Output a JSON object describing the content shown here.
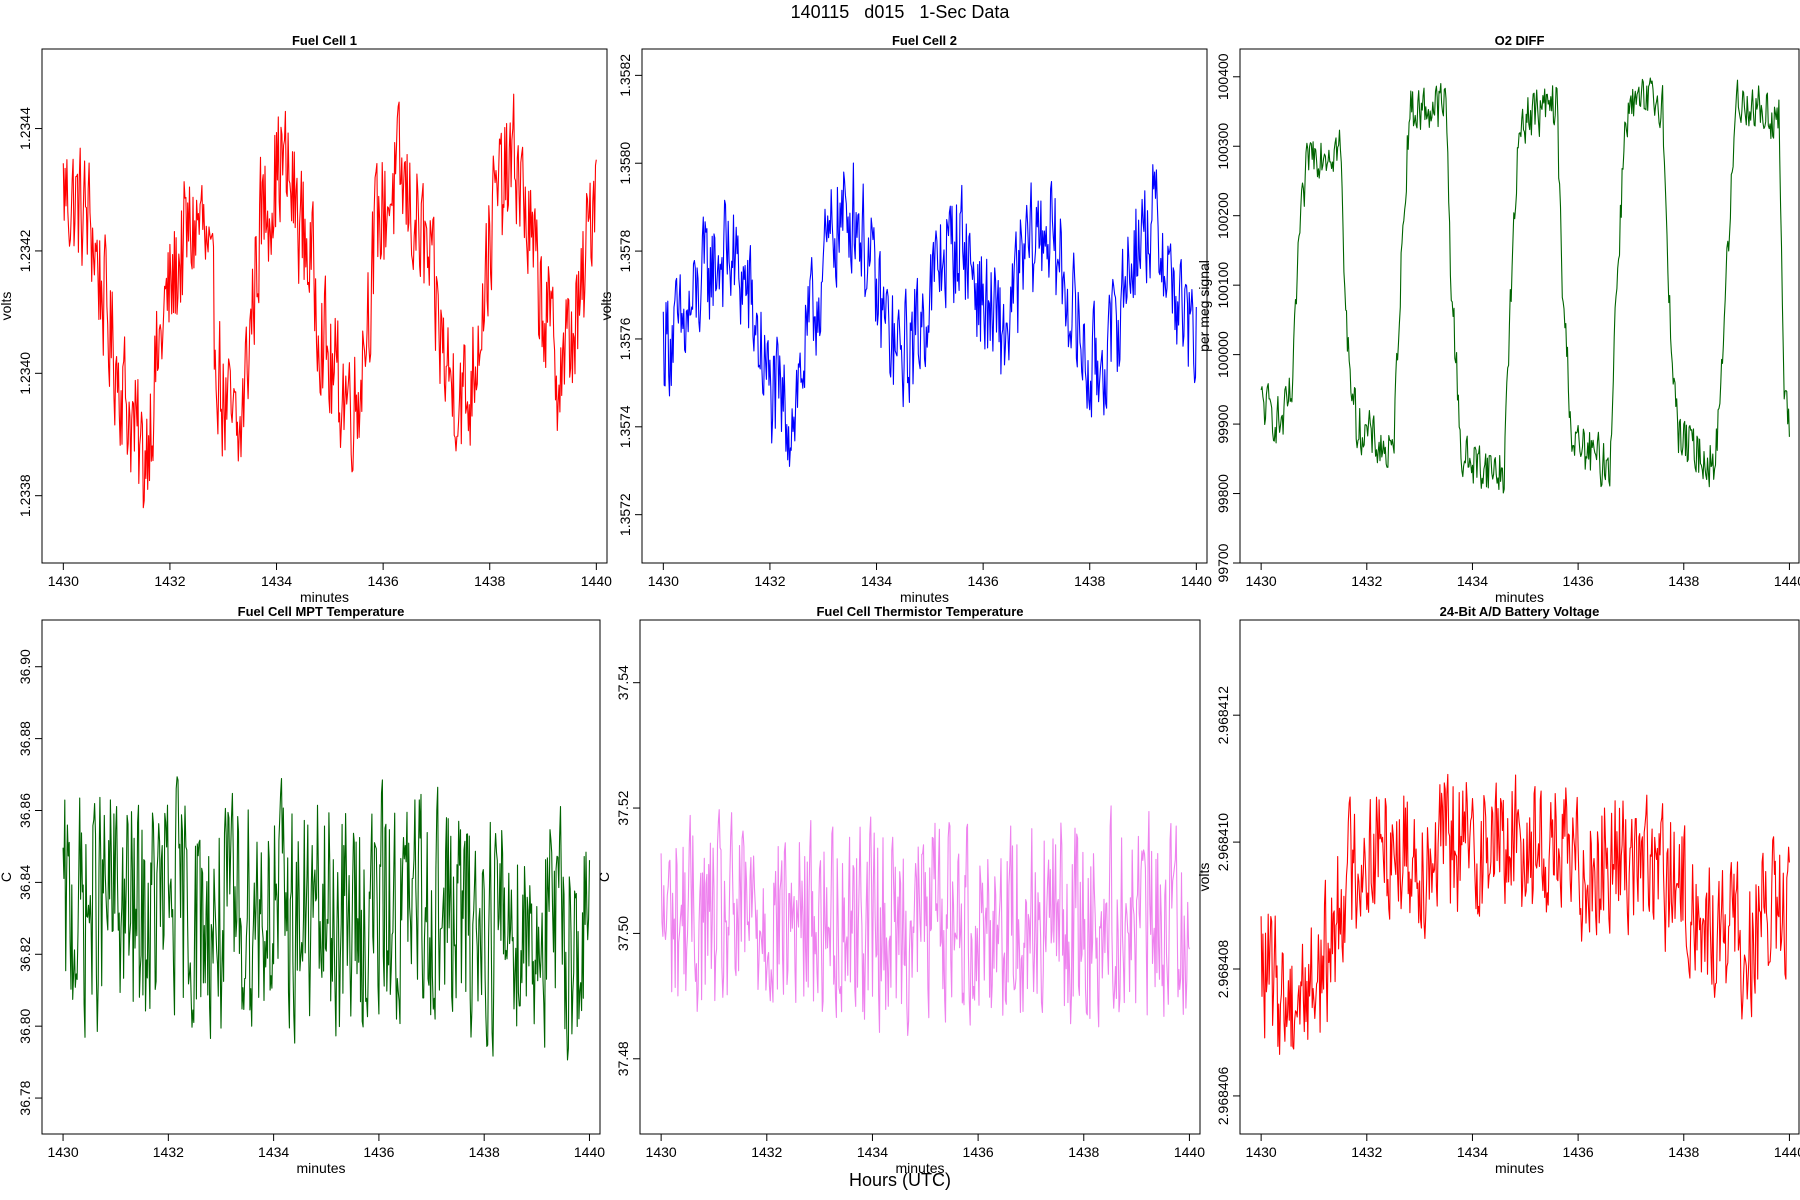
{
  "page": {
    "title": "140115   d015   1-Sec Data",
    "xlabel": "Hours (UTC)"
  },
  "chart_data": [
    {
      "type": "line",
      "title": "Fuel Cell 1",
      "xlabel": "minutes",
      "ylabel": "volts",
      "color": "#ff0000",
      "xlim": [
        1429.6,
        1440.2
      ],
      "ylim": [
        1.23369,
        1.23453
      ],
      "xticks": [
        "1430",
        "1432",
        "1434",
        "1436",
        "1438",
        "1440"
      ],
      "yticks": [
        "1.2338",
        "1.2340",
        "1.2342",
        "1.2344"
      ],
      "series": [
        {
          "x": [
            1430.0,
            1430.5,
            1430.9,
            1431.2,
            1431.5,
            1431.9,
            1432.3,
            1432.6,
            1433.0,
            1433.3,
            1433.7,
            1434.1,
            1434.6,
            1435.0,
            1435.5,
            1435.9,
            1436.3,
            1436.8,
            1437.2,
            1437.6,
            1438.1,
            1438.5,
            1438.9,
            1439.3,
            1439.7,
            1440.0
          ],
          "y": [
            1.2343,
            1.23425,
            1.23405,
            1.23395,
            1.23385,
            1.2341,
            1.23422,
            1.23425,
            1.23395,
            1.23388,
            1.23425,
            1.23435,
            1.2342,
            1.234,
            1.23395,
            1.23425,
            1.23432,
            1.2342,
            1.234,
            1.23395,
            1.23428,
            1.23435,
            1.23415,
            1.234,
            1.2341,
            1.23435
          ]
        }
      ]
    },
    {
      "type": "line",
      "title": "Fuel Cell 2",
      "xlabel": "minutes",
      "ylabel": "volts",
      "color": "#0000ff",
      "xlim": [
        1429.6,
        1440.2
      ],
      "ylim": [
        1.35709,
        1.35826
      ],
      "xticks": [
        "1430",
        "1432",
        "1434",
        "1436",
        "1438",
        "1440"
      ],
      "yticks": [
        "1.3572",
        "1.3574",
        "1.3576",
        "1.3578",
        "1.3580",
        "1.3582"
      ],
      "series": [
        {
          "x": [
            1430.0,
            1430.4,
            1430.8,
            1431.2,
            1431.6,
            1432.0,
            1432.4,
            1432.8,
            1433.2,
            1433.6,
            1434.0,
            1434.4,
            1434.8,
            1435.2,
            1435.6,
            1436.0,
            1436.4,
            1436.8,
            1437.2,
            1437.6,
            1438.0,
            1438.4,
            1438.8,
            1439.2,
            1439.6,
            1440.0
          ],
          "y": [
            1.3576,
            1.35762,
            1.35775,
            1.3578,
            1.3577,
            1.35748,
            1.35742,
            1.35765,
            1.35785,
            1.3579,
            1.3577,
            1.35755,
            1.35762,
            1.35778,
            1.35783,
            1.35768,
            1.3576,
            1.3578,
            1.35786,
            1.3577,
            1.35752,
            1.35758,
            1.3578,
            1.35788,
            1.3577,
            1.35758
          ]
        }
      ]
    },
    {
      "type": "line",
      "title": "O2 DIFF",
      "xlabel": "minutes",
      "ylabel": "per meg signal",
      "color": "#006400",
      "xlim": [
        1429.6,
        1440.2
      ],
      "ylim": [
        99700,
        100440
      ],
      "xticks": [
        "1430",
        "1432",
        "1434",
        "1436",
        "1438",
        "1440"
      ],
      "yticks": [
        "99700",
        "99800",
        "99900",
        "100000",
        "100100",
        "100200",
        "100300",
        "100400"
      ],
      "series": [
        {
          "x": [
            1430.0,
            1430.4,
            1430.6,
            1430.7,
            1430.9,
            1431.5,
            1431.6,
            1431.8,
            1432.5,
            1432.6,
            1432.8,
            1433.5,
            1433.6,
            1433.8,
            1434.6,
            1434.7,
            1434.9,
            1435.6,
            1435.7,
            1435.9,
            1436.6,
            1436.7,
            1436.9,
            1437.6,
            1437.7,
            1437.9,
            1438.6,
            1438.8,
            1439.0,
            1439.8,
            1439.9,
            1440.0
          ],
          "y": [
            99930,
            99900,
            99950,
            100150,
            100290,
            100300,
            100050,
            99900,
            99850,
            100050,
            100350,
            100360,
            100100,
            99850,
            99830,
            100050,
            100340,
            100360,
            100100,
            99870,
            99840,
            100050,
            100350,
            100370,
            100100,
            99880,
            99840,
            100100,
            100370,
            100340,
            99950,
            99880
          ]
        }
      ]
    },
    {
      "type": "line",
      "title": "Fuel Cell MPT Temperature",
      "xlabel": "minutes",
      "ylabel": "C",
      "color": "#006400",
      "xlim": [
        1429.6,
        1440.2
      ],
      "ylim": [
        36.77,
        36.913
      ],
      "xticks": [
        "1430",
        "1432",
        "1434",
        "1436",
        "1438",
        "1440"
      ],
      "yticks": [
        "36.78",
        "36.80",
        "36.82",
        "36.84",
        "36.86",
        "36.88",
        "36.90"
      ],
      "series": [
        {
          "x": [
            1430.0,
            1430.5,
            1431.0,
            1431.5,
            1432.0,
            1432.5,
            1433.0,
            1433.5,
            1434.0,
            1434.5,
            1435.0,
            1435.5,
            1436.0,
            1436.5,
            1437.0,
            1437.5,
            1438.0,
            1438.5,
            1439.0,
            1439.5,
            1440.0
          ],
          "y": [
            36.83,
            36.832,
            36.835,
            36.828,
            36.836,
            36.83,
            36.828,
            36.833,
            36.834,
            36.83,
            36.83,
            36.828,
            36.832,
            36.831,
            36.835,
            36.829,
            36.828,
            36.83,
            36.827,
            36.826,
            36.822
          ]
        }
      ]
    },
    {
      "type": "line",
      "title": "Fuel Cell Thermistor Temperature",
      "xlabel": "minutes",
      "ylabel": "C",
      "color": "#ee82ee",
      "xlim": [
        1429.6,
        1440.2
      ],
      "ylim": [
        37.468,
        37.55
      ],
      "xticks": [
        "1430",
        "1432",
        "1434",
        "1436",
        "1438",
        "1440"
      ],
      "yticks": [
        "37.48",
        "37.50",
        "37.52",
        "37.54"
      ],
      "series": [
        {
          "x": [
            1430.0,
            1430.5,
            1431.0,
            1431.5,
            1432.0,
            1432.5,
            1433.0,
            1433.5,
            1434.0,
            1434.5,
            1435.0,
            1435.5,
            1436.0,
            1436.5,
            1437.0,
            1437.5,
            1438.0,
            1438.5,
            1439.0,
            1439.5,
            1440.0
          ],
          "y": [
            37.502,
            37.503,
            37.501,
            37.502,
            37.503,
            37.502,
            37.502,
            37.503,
            37.502,
            37.501,
            37.503,
            37.503,
            37.502,
            37.502,
            37.503,
            37.502,
            37.501,
            37.503,
            37.502,
            37.502,
            37.504
          ]
        }
      ]
    },
    {
      "type": "line",
      "title": "24-Bit A/D Battery Voltage",
      "xlabel": "minutes",
      "ylabel": "volts",
      "color": "#ff0000",
      "xlim": [
        1429.6,
        1440.2
      ],
      "ylim": [
        2.9684054,
        2.9684135
      ],
      "xticks": [
        "1430",
        "1432",
        "1434",
        "1436",
        "1438",
        "1440"
      ],
      "yticks": [
        "2.968406",
        "2.968408",
        "2.968410",
        "2.968412"
      ],
      "series": [
        {
          "x": [
            1430.0,
            1430.5,
            1431.0,
            1431.3,
            1431.6,
            1432.0,
            1432.5,
            1433.0,
            1433.5,
            1434.0,
            1434.5,
            1435.0,
            1435.5,
            1436.0,
            1436.5,
            1437.0,
            1437.5,
            1438.0,
            1438.4,
            1438.8,
            1439.2,
            1439.6,
            1440.0
          ],
          "y": [
            2.968408,
            2.9684075,
            2.9684078,
            2.9684083,
            2.9684095,
            2.9684098,
            2.96841,
            2.9684097,
            2.96841,
            2.9684099,
            2.96841,
            2.96841,
            2.9684099,
            2.9684096,
            2.9684097,
            2.9684098,
            2.9684095,
            2.9684092,
            2.9684085,
            2.9684087,
            2.9684083,
            2.9684089,
            2.9684088
          ]
        }
      ]
    }
  ]
}
